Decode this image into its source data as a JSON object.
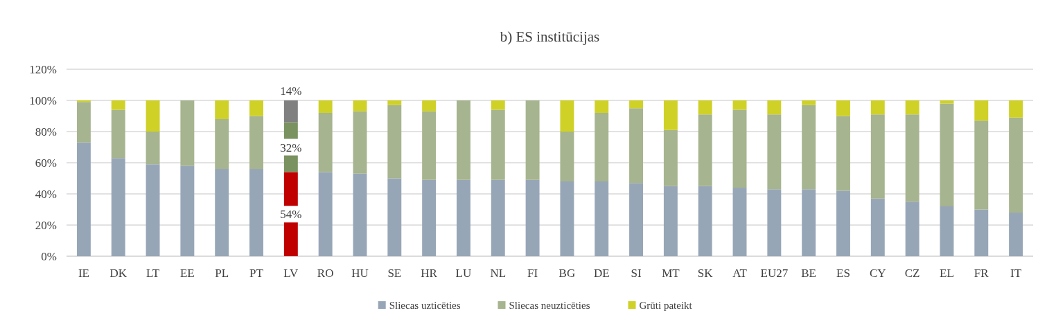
{
  "chart_data": {
    "type": "bar",
    "title": "b) ES institūcijas",
    "stacked": true,
    "categories": [
      "IE",
      "DK",
      "LT",
      "EE",
      "PL",
      "PT",
      "LV",
      "RO",
      "HU",
      "SE",
      "HR",
      "LU",
      "NL",
      "FI",
      "BG",
      "DE",
      "SI",
      "MT",
      "SK",
      "AT",
      "EU27",
      "BE",
      "ES",
      "CY",
      "CZ",
      "EL",
      "FR",
      "IT"
    ],
    "series": [
      {
        "name": "Sliecas uzticēties",
        "color": "#97a6b7",
        "colors": [
          "#97a6b7",
          "#97a6b7",
          "#97a6b7",
          "#97a6b7",
          "#97a6b7",
          "#97a6b7",
          "#c00000",
          "#97a6b7",
          "#97a6b7",
          "#97a6b7",
          "#97a6b7",
          "#97a6b7",
          "#97a6b7",
          "#97a6b7",
          "#97a6b7",
          "#97a6b7",
          "#97a6b7",
          "#97a6b7",
          "#97a6b7",
          "#97a6b7",
          "#97a6b7",
          "#97a6b7",
          "#97a6b7",
          "#97a6b7",
          "#97a6b7",
          "#97a6b7",
          "#97a6b7",
          "#97a6b7"
        ],
        "values": [
          73,
          63,
          59,
          58,
          56,
          56,
          54,
          54,
          53,
          50,
          49,
          49,
          49,
          49,
          48,
          48,
          47,
          45,
          45,
          44,
          43,
          43,
          42,
          37,
          35,
          32,
          30,
          28
        ],
        "value_labels": [
          null,
          null,
          null,
          null,
          null,
          null,
          "54%",
          null,
          null,
          null,
          null,
          null,
          null,
          null,
          null,
          null,
          null,
          null,
          null,
          null,
          null,
          null,
          null,
          null,
          null,
          null,
          null,
          null
        ]
      },
      {
        "name": "Sliecas neuzticēties",
        "color": "#a6b48f",
        "colors": [
          "#a6b48f",
          "#a6b48f",
          "#a6b48f",
          "#a6b48f",
          "#a6b48f",
          "#a6b48f",
          "#7a9160",
          "#a6b48f",
          "#a6b48f",
          "#a6b48f",
          "#a6b48f",
          "#a6b48f",
          "#a6b48f",
          "#a6b48f",
          "#a6b48f",
          "#a6b48f",
          "#a6b48f",
          "#a6b48f",
          "#a6b48f",
          "#a6b48f",
          "#a6b48f",
          "#a6b48f",
          "#a6b48f",
          "#a6b48f",
          "#a6b48f",
          "#a6b48f",
          "#a6b48f",
          "#a6b48f"
        ],
        "values": [
          26,
          31,
          21,
          42,
          32,
          34,
          32,
          38,
          40,
          47,
          44,
          51,
          45,
          51,
          32,
          44,
          48,
          36,
          46,
          50,
          48,
          54,
          48,
          54,
          56,
          66,
          57,
          61
        ],
        "value_labels": [
          null,
          null,
          null,
          null,
          null,
          null,
          "32%",
          null,
          null,
          null,
          null,
          null,
          null,
          null,
          null,
          null,
          null,
          null,
          null,
          null,
          null,
          null,
          null,
          null,
          null,
          null,
          null,
          null
        ]
      },
      {
        "name": "Grūti pateikt",
        "color": "#cfd127",
        "colors": [
          "#cfd127",
          "#cfd127",
          "#cfd127",
          "#cfd127",
          "#cfd127",
          "#cfd127",
          "#808080",
          "#cfd127",
          "#cfd127",
          "#cfd127",
          "#cfd127",
          "#cfd127",
          "#cfd127",
          "#cfd127",
          "#cfd127",
          "#cfd127",
          "#cfd127",
          "#cfd127",
          "#cfd127",
          "#cfd127",
          "#cfd127",
          "#cfd127",
          "#cfd127",
          "#cfd127",
          "#cfd127",
          "#cfd127",
          "#cfd127",
          "#cfd127"
        ],
        "values": [
          1,
          6,
          20,
          0,
          12,
          10,
          14,
          8,
          7,
          3,
          7,
          0,
          6,
          0,
          20,
          8,
          5,
          19,
          9,
          6,
          9,
          3,
          10,
          9,
          9,
          2,
          13,
          11
        ],
        "value_labels": [
          null,
          null,
          null,
          null,
          null,
          null,
          "14%",
          null,
          null,
          null,
          null,
          null,
          null,
          null,
          null,
          null,
          null,
          null,
          null,
          null,
          null,
          null,
          null,
          null,
          null,
          null,
          null,
          null
        ]
      }
    ],
    "ylim": [
      0,
      120
    ],
    "yticks": [
      {
        "value": 0,
        "label": "0%"
      },
      {
        "value": 20,
        "label": "20%"
      },
      {
        "value": 40,
        "label": "40%"
      },
      {
        "value": 60,
        "label": "60%"
      },
      {
        "value": 80,
        "label": "80%"
      },
      {
        "value": 100,
        "label": "100%"
      },
      {
        "value": 120,
        "label": "120%"
      }
    ],
    "grid": "y",
    "legend": "bottom"
  }
}
